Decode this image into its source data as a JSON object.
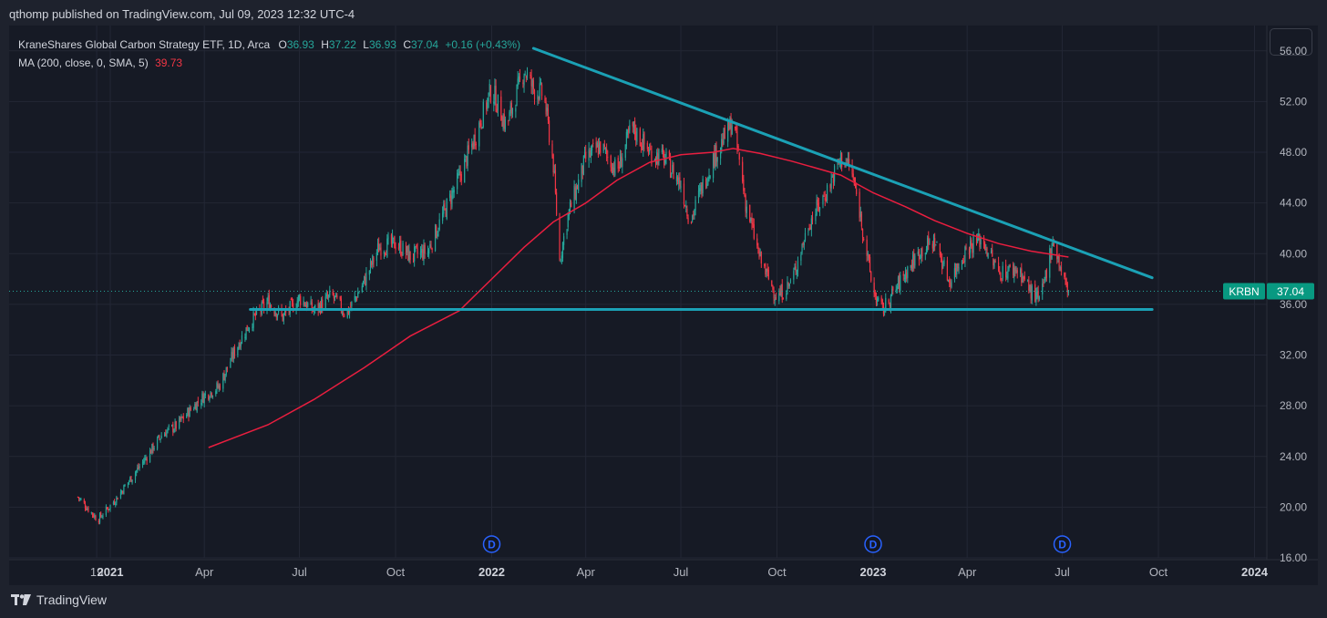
{
  "header": {
    "published": "qthomp published on TradingView.com, Jul 09, 2023 12:32 UTC-4"
  },
  "legend": {
    "title": "KraneShares Global Carbon Strategy ETF, 1D, Arca",
    "o_label": "O",
    "o": "36.93",
    "h_label": "H",
    "h": "37.22",
    "l_label": "L",
    "l": "36.93",
    "c_label": "C",
    "c": "37.04",
    "change": "+0.16 (+0.43%)",
    "ma_label": "MA (200, close, 0, SMA, 5)",
    "ma_value": "39.73"
  },
  "price_tag": {
    "symbol": "KRBN",
    "price": "37.04"
  },
  "brand": {
    "name": "TradingView"
  },
  "chart_data": {
    "type": "candlestick",
    "symbol": "KRBN",
    "ylim": [
      16,
      58
    ],
    "y_ticks": [
      "16.00",
      "20.00",
      "24.00",
      "28.00",
      "32.00",
      "36.00",
      "40.00",
      "44.00",
      "48.00",
      "52.00",
      "56.00"
    ],
    "x_ticks": [
      "19",
      "2021",
      "Apr",
      "Jul",
      "Oct",
      "2022",
      "Apr",
      "Jul",
      "Oct",
      "2023",
      "Apr",
      "Jul",
      "Oct",
      "2024"
    ],
    "x_range": [
      "2020-12-01",
      "2024-01-01"
    ],
    "price_path": [
      [
        "2020-12-01",
        20.8
      ],
      [
        "2020-12-20",
        19.0
      ],
      [
        "2021-01-05",
        20.5
      ],
      [
        "2021-01-20",
        22.2
      ],
      [
        "2021-02-05",
        24.0
      ],
      [
        "2021-02-20",
        25.8
      ],
      [
        "2021-03-05",
        26.4
      ],
      [
        "2021-03-20",
        27.8
      ],
      [
        "2021-04-01",
        28.8
      ],
      [
        "2021-04-15",
        29.5
      ],
      [
        "2021-05-01",
        32.5
      ],
      [
        "2021-05-15",
        34.6
      ],
      [
        "2021-06-01",
        36.2
      ],
      [
        "2021-06-15",
        35.0
      ],
      [
        "2021-07-01",
        36.5
      ],
      [
        "2021-07-15",
        35.5
      ],
      [
        "2021-08-01",
        36.7
      ],
      [
        "2021-08-15",
        35.2
      ],
      [
        "2021-09-01",
        37.8
      ],
      [
        "2021-09-15",
        40.5
      ],
      [
        "2021-10-01",
        40.8
      ],
      [
        "2021-10-15",
        39.8
      ],
      [
        "2021-11-01",
        40.2
      ],
      [
        "2021-11-15",
        43.0
      ],
      [
        "2021-12-01",
        46.0
      ],
      [
        "2021-12-15",
        49.0
      ],
      [
        "2022-01-01",
        53.0
      ],
      [
        "2022-01-15",
        50.0
      ],
      [
        "2022-02-01",
        54.5
      ],
      [
        "2022-02-10",
        53.0
      ],
      [
        "2022-02-20",
        52.5
      ],
      [
        "2022-03-01",
        47.0
      ],
      [
        "2022-03-07",
        39.5
      ],
      [
        "2022-03-15",
        43.0
      ],
      [
        "2022-04-01",
        47.5
      ],
      [
        "2022-04-15",
        48.5
      ],
      [
        "2022-05-01",
        46.5
      ],
      [
        "2022-05-15",
        50.0
      ],
      [
        "2022-06-01",
        48.0
      ],
      [
        "2022-06-15",
        47.5
      ],
      [
        "2022-07-01",
        45.5
      ],
      [
        "2022-07-10",
        42.5
      ],
      [
        "2022-07-20",
        45.0
      ],
      [
        "2022-08-01",
        47.5
      ],
      [
        "2022-08-20",
        50.5
      ],
      [
        "2022-09-01",
        44.0
      ],
      [
        "2022-09-15",
        39.5
      ],
      [
        "2022-10-01",
        36.5
      ],
      [
        "2022-10-15",
        37.8
      ],
      [
        "2022-11-01",
        42.5
      ],
      [
        "2022-11-15",
        44.5
      ],
      [
        "2022-12-01",
        47.5
      ],
      [
        "2022-12-10",
        47.0
      ],
      [
        "2022-12-20",
        43.0
      ],
      [
        "2023-01-01",
        37.0
      ],
      [
        "2023-01-10",
        35.5
      ],
      [
        "2023-02-01",
        38.5
      ],
      [
        "2023-02-15",
        40.2
      ],
      [
        "2023-03-01",
        41.0
      ],
      [
        "2023-03-15",
        37.8
      ],
      [
        "2023-04-01",
        40.5
      ],
      [
        "2023-04-15",
        41.2
      ],
      [
        "2023-05-01",
        38.5
      ],
      [
        "2023-05-20",
        38.8
      ],
      [
        "2023-06-01",
        37.0
      ],
      [
        "2023-06-10",
        36.2
      ],
      [
        "2023-06-22",
        41.2
      ],
      [
        "2023-07-01",
        38.2
      ],
      [
        "2023-07-07",
        37.04
      ]
    ],
    "ma_series": {
      "name": "MA (200, close, 0, SMA, 5)",
      "points": [
        [
          "2021-04-05",
          24.7
        ],
        [
          "2021-06-01",
          26.5
        ],
        [
          "2021-07-15",
          28.5
        ],
        [
          "2021-09-01",
          31.0
        ],
        [
          "2021-10-15",
          33.5
        ],
        [
          "2021-12-01",
          35.5
        ],
        [
          "2022-01-01",
          38.0
        ],
        [
          "2022-02-01",
          40.5
        ],
        [
          "2022-03-01",
          42.5
        ],
        [
          "2022-04-01",
          44.0
        ],
        [
          "2022-05-01",
          45.8
        ],
        [
          "2022-06-01",
          47.2
        ],
        [
          "2022-07-01",
          47.8
        ],
        [
          "2022-08-01",
          48.0
        ],
        [
          "2022-08-20",
          48.3
        ],
        [
          "2022-09-15",
          47.9
        ],
        [
          "2022-10-15",
          47.3
        ],
        [
          "2022-12-01",
          46.2
        ],
        [
          "2023-01-01",
          44.8
        ],
        [
          "2023-02-01",
          43.7
        ],
        [
          "2023-03-01",
          42.6
        ],
        [
          "2023-04-01",
          41.6
        ],
        [
          "2023-05-01",
          40.8
        ],
        [
          "2023-06-01",
          40.2
        ],
        [
          "2023-07-07",
          39.73
        ]
      ]
    },
    "drawings": [
      {
        "name": "descending-trendline",
        "points": [
          [
            "2022-02-10",
            56.2
          ],
          [
            "2023-09-25",
            38.1
          ]
        ]
      },
      {
        "name": "support-line",
        "points": [
          [
            "2021-05-15",
            35.6
          ],
          [
            "2023-09-25",
            35.6
          ]
        ]
      }
    ],
    "dividend_markers": [
      "2022-01-01",
      "2023-01-01",
      "2023-07-01"
    ],
    "dividend_label": "D",
    "last_price": 37.04,
    "colors": {
      "up": "#26a69a",
      "down": "#f23645",
      "ma": "#e91e3f",
      "trendline": "#1ba1b5",
      "grid": "#232735",
      "price_tag": "#089981",
      "dividend": "#2962ff"
    }
  }
}
